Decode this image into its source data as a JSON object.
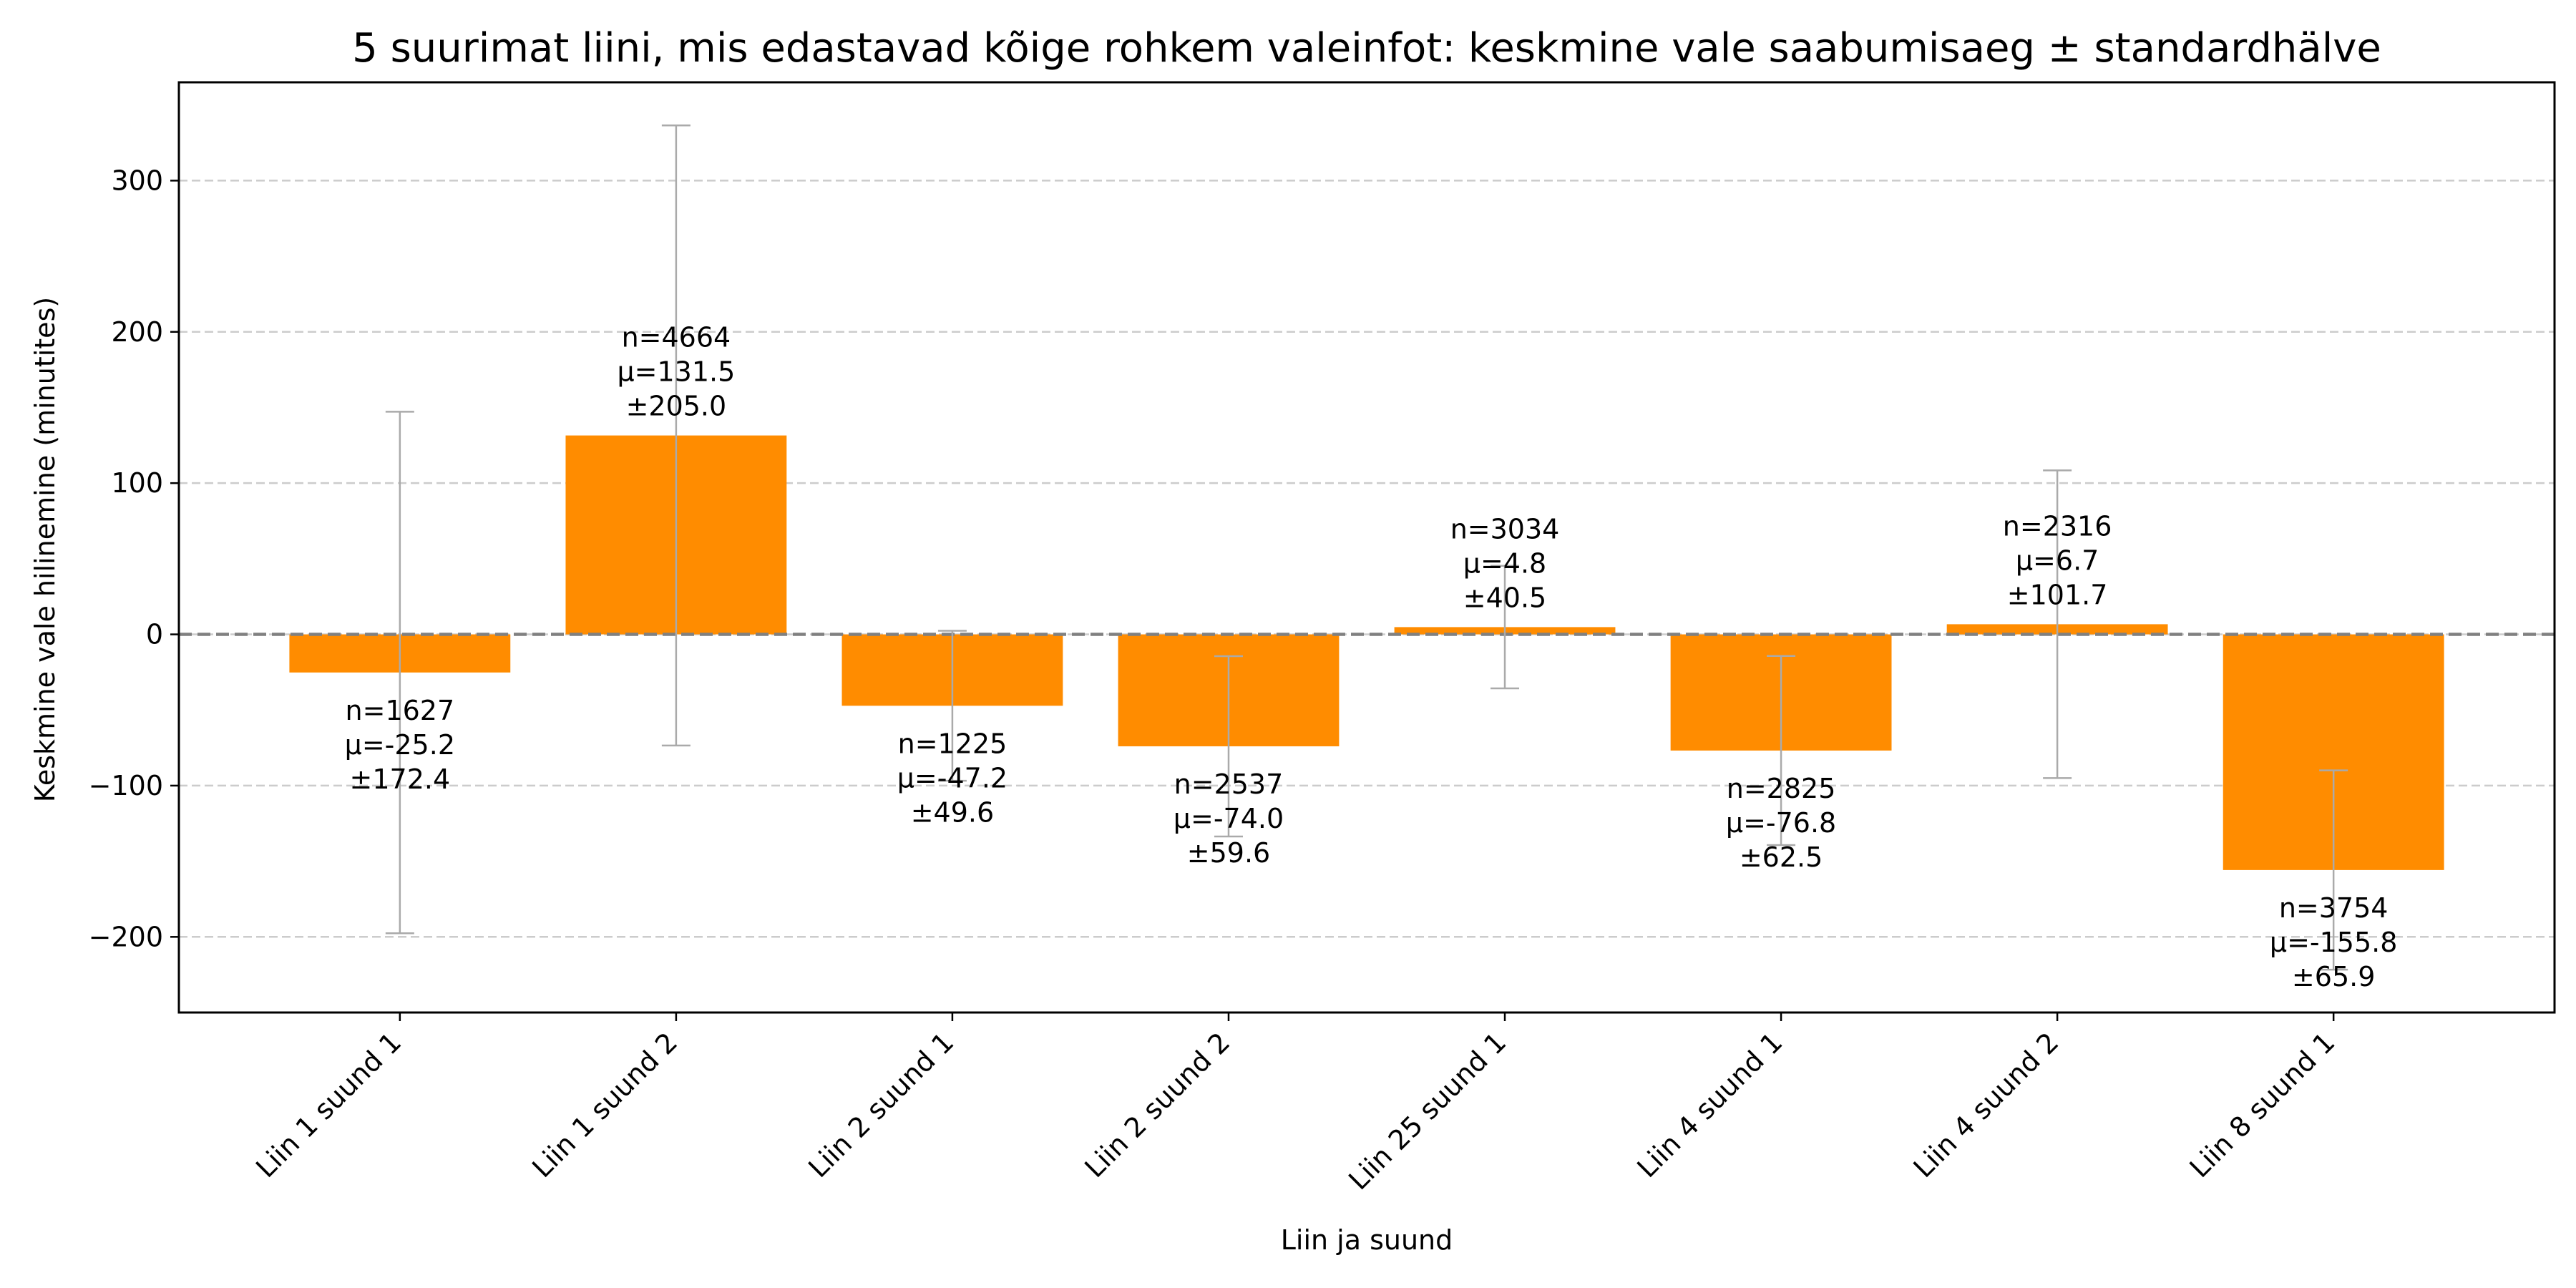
{
  "chart_data": {
    "type": "bar",
    "title": "5 suurimat liini, mis edastavad kõige rohkem valeinfot: keskmine vale saabumisaeg ± standardhälve",
    "xlabel": "Liin ja suund",
    "ylabel": "Keskmine vale hilinemine (minutites)",
    "ylim": [
      -250,
      365
    ],
    "yticks": [
      -200,
      -100,
      0,
      100,
      200,
      300
    ],
    "ytick_labels": [
      "−200",
      "−100",
      "0",
      "100",
      "200",
      "300"
    ],
    "grid": "y-dashed",
    "bar_color": "#ff8c00",
    "errorbar_color": "#aaaaaa",
    "zero_line_color": "#808080",
    "categories": [
      "Liin 1 suund 1",
      "Liin 1 suund 2",
      "Liin 2 suund 1",
      "Liin 2 suund 2",
      "Liin 25 suund 1",
      "Liin 4 suund 1",
      "Liin 4 suund 2",
      "Liin 8 suund 1"
    ],
    "values": [
      -25.2,
      131.5,
      -47.2,
      -74.0,
      4.8,
      -76.8,
      6.7,
      -155.8
    ],
    "errors": [
      172.4,
      205.0,
      49.6,
      59.6,
      40.5,
      62.5,
      101.7,
      65.9
    ],
    "counts": [
      1627,
      4664,
      1225,
      2537,
      3034,
      2825,
      2316,
      3754
    ],
    "annotations": [
      [
        "n=1627",
        "μ=-25.2",
        "±172.4"
      ],
      [
        "n=4664",
        "μ=131.5",
        "±205.0"
      ],
      [
        "n=1225",
        "μ=-47.2",
        "±49.6"
      ],
      [
        "n=2537",
        "μ=-74.0",
        "±59.6"
      ],
      [
        "n=3034",
        "μ=4.8",
        "±40.5"
      ],
      [
        "n=2825",
        "μ=-76.8",
        "±62.5"
      ],
      [
        "n=2316",
        "μ=6.7",
        "±101.7"
      ],
      [
        "n=3754",
        "μ=-155.8",
        "±65.9"
      ]
    ]
  }
}
